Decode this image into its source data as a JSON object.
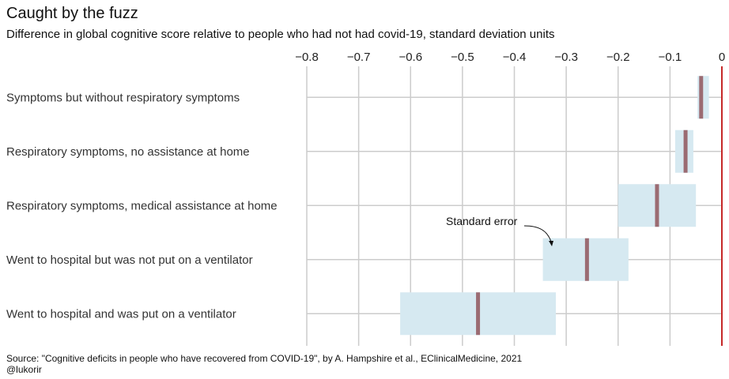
{
  "title": "Caught by the fuzz",
  "subtitle": "Difference in global cognitive score relative to people who had not had covid-19, standard deviation units",
  "source": "Source: \"Cognitive deficits in people who have recovered from COVID-19\", by A. Hampshire et al., EClinicalMedicine, 2021",
  "credit": "@lukorir",
  "annotation": "Standard error",
  "colors": {
    "estimate": "#9b6b72",
    "error_band": "#d6e9f1",
    "zero_line": "#c62828",
    "grid": "#cccccc"
  },
  "chart_data": {
    "type": "interval",
    "title": "Caught by the fuzz",
    "subtitle": "Difference in global cognitive score relative to people who had not had covid-19, standard deviation units",
    "xlim": [
      -0.8,
      0
    ],
    "x_ticks": [
      -0.8,
      -0.7,
      -0.6,
      -0.5,
      -0.4,
      -0.3,
      -0.2,
      -0.1,
      0
    ],
    "x_tick_labels": [
      "−0.8",
      "−0.7",
      "−0.6",
      "−0.5",
      "−0.4",
      "−0.3",
      "−0.2",
      "−0.1",
      "0"
    ],
    "x_axis_position": "top",
    "grid": true,
    "categories": [
      "Symptoms but without respiratory symptoms",
      "Respiratory symptoms, no assistance at home",
      "Respiratory symptoms, medical assistance at home",
      "Went to hospital but was not put on a ventilator",
      "Went to hospital and was put on a ventilator"
    ],
    "estimate": [
      -0.04,
      -0.07,
      -0.125,
      -0.26,
      -0.47
    ],
    "lower": [
      -0.047,
      -0.09,
      -0.2,
      -0.345,
      -0.62
    ],
    "upper": [
      -0.025,
      -0.055,
      -0.05,
      -0.18,
      -0.32
    ],
    "reference_line": 0
  }
}
